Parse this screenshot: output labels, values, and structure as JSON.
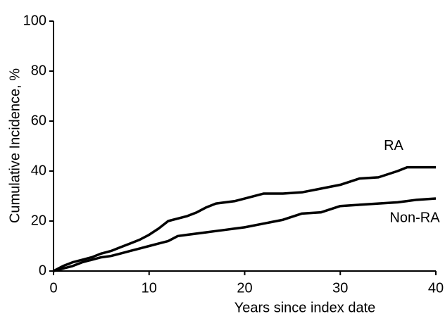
{
  "chart_data": {
    "type": "line",
    "x_label": "Years since index date",
    "y_label": "Cumulative Incidence, %",
    "x": [
      0,
      1,
      2,
      3,
      4,
      5,
      6,
      7,
      8,
      9,
      10,
      11,
      12,
      13,
      14,
      15,
      16,
      17,
      18,
      19,
      20,
      22,
      24,
      26,
      28,
      30,
      32,
      34,
      36,
      37,
      38,
      40
    ],
    "series": [
      {
        "name": "RA",
        "color": "#000000",
        "values": [
          0,
          2,
          3.5,
          4.5,
          5.5,
          7,
          8,
          9.5,
          11,
          12.5,
          14.5,
          17,
          20,
          21,
          22,
          23.5,
          25.5,
          27,
          27.5,
          28,
          29,
          31,
          31,
          31.5,
          33,
          34.5,
          37,
          37.5,
          40,
          41.5,
          41.5,
          41.5
        ]
      },
      {
        "name": "Non-RA",
        "color": "#000000",
        "values": [
          0,
          1,
          2,
          3.5,
          4.5,
          5.5,
          6,
          7,
          8,
          9,
          10,
          11,
          12,
          14,
          14.5,
          15,
          15.5,
          16,
          16.5,
          17,
          17.5,
          19,
          20.5,
          23,
          23.5,
          26,
          26.5,
          27,
          27.5,
          28,
          28.5,
          29
        ]
      }
    ],
    "xlim": [
      0,
      40
    ],
    "xticks": [
      0,
      10,
      20,
      30,
      40
    ],
    "ylim": [
      0,
      100
    ],
    "yticks": [
      0,
      20,
      40,
      60,
      80,
      100
    ],
    "grid": false
  }
}
